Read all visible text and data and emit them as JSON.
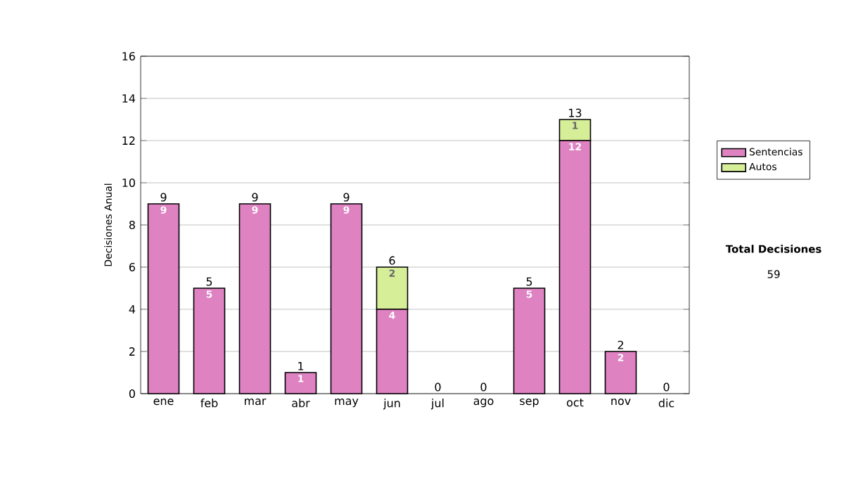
{
  "chart_data": {
    "type": "bar",
    "stacked": true,
    "ylabel": "Decisiones Anual",
    "categories": [
      "ene",
      "feb",
      "mar",
      "abr",
      "may",
      "jun",
      "jul",
      "ago",
      "sep",
      "oct",
      "nov",
      "dic"
    ],
    "series": [
      {
        "name": "Sentencias",
        "color": "#de82c2",
        "values": [
          9,
          5,
          9,
          1,
          9,
          4,
          0,
          0,
          5,
          12,
          2,
          0
        ],
        "value_labels": [
          "9",
          "5",
          "9",
          "1",
          "9",
          "4",
          null,
          null,
          "5",
          "12",
          "2",
          null
        ]
      },
      {
        "name": "Autos",
        "color": "#d6ee98",
        "values": [
          0,
          0,
          0,
          0,
          0,
          2,
          0,
          0,
          0,
          1,
          0,
          0
        ],
        "value_labels": [
          null,
          null,
          null,
          null,
          null,
          "2",
          null,
          null,
          null,
          "1",
          null,
          null
        ]
      }
    ],
    "totals": [
      "9",
      "5",
      "9",
      "1",
      "9",
      "6",
      "0",
      "0",
      "5",
      "13",
      "2",
      "0"
    ],
    "ylim": [
      0,
      16
    ],
    "yticks": [
      0,
      2,
      4,
      6,
      8,
      10,
      12,
      14,
      16
    ],
    "grid": "y",
    "legend": "right",
    "annotations": [
      "Total Decisiones",
      "59"
    ]
  }
}
